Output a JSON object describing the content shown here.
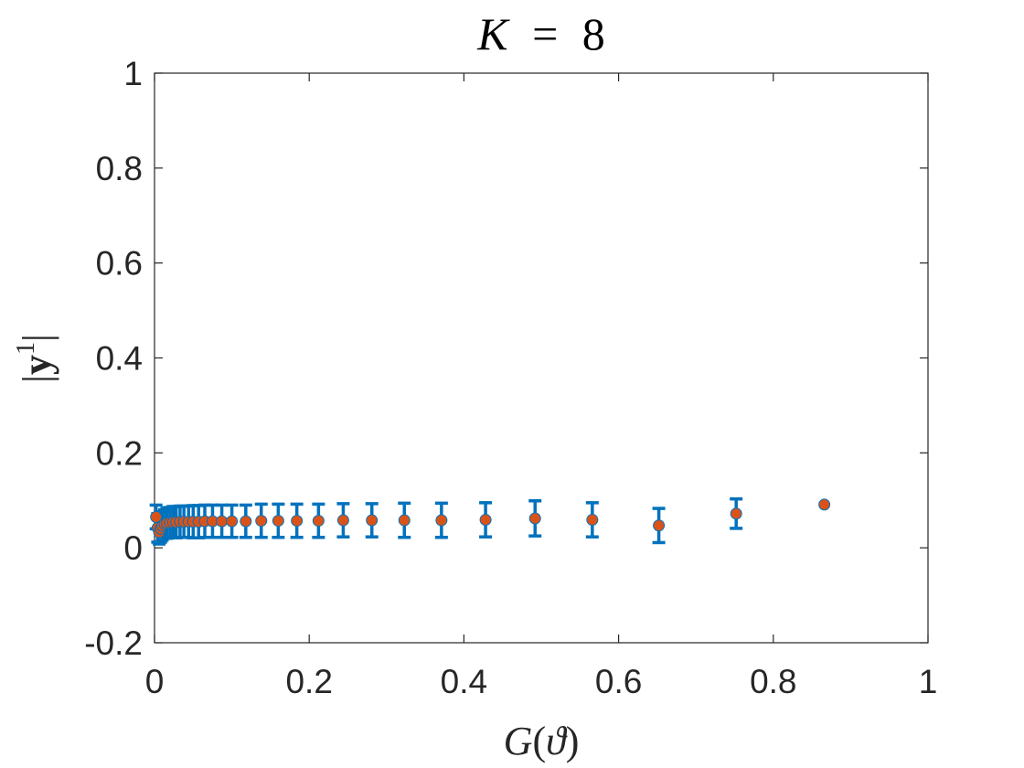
{
  "chart_data": {
    "type": "scatter",
    "title": "K = 8",
    "title_parts": {
      "var": "K",
      "op": "=",
      "num": "8"
    },
    "xlabel": "G(ϑ)",
    "xlabel_parts": {
      "fn": "G",
      "open": "(",
      "var": "ϑ",
      "close": ")"
    },
    "ylabel": "|y¹|",
    "ylabel_parts": {
      "bar_left": "|",
      "var": "y",
      "sup": "1",
      "bar_right": "|"
    },
    "xlim": [
      0,
      1
    ],
    "ylim": [
      -0.2,
      1
    ],
    "xticks": [
      0,
      0.2,
      0.4,
      0.6,
      0.8,
      1
    ],
    "xtick_labels": [
      "0",
      "0.2",
      "0.4",
      "0.6",
      "0.8",
      "1"
    ],
    "yticks": [
      -0.2,
      0,
      0.2,
      0.4,
      0.6,
      0.8,
      1
    ],
    "ytick_labels": [
      "-0.2",
      "0",
      "0.2",
      "0.4",
      "0.6",
      "0.8",
      "1"
    ],
    "grid": false,
    "colors": {
      "errorbar": "#0072BD",
      "marker": "#D95319",
      "axis": "#262626"
    },
    "series": [
      {
        "x": [
          0.002,
          0.004,
          0.006,
          0.008,
          0.01,
          0.013,
          0.016,
          0.02,
          0.024,
          0.028,
          0.033,
          0.038,
          0.044,
          0.05,
          0.057,
          0.065,
          0.075,
          0.087,
          0.1,
          0.118,
          0.138,
          0.16,
          0.184,
          0.212,
          0.244,
          0.281,
          0.323,
          0.371,
          0.428,
          0.492,
          0.566,
          0.652,
          0.752,
          0.866
        ],
        "y": [
          0.065,
          0.042,
          0.033,
          0.04,
          0.046,
          0.05,
          0.052,
          0.053,
          0.054,
          0.054,
          0.055,
          0.055,
          0.055,
          0.055,
          0.055,
          0.056,
          0.056,
          0.056,
          0.056,
          0.056,
          0.057,
          0.057,
          0.057,
          0.057,
          0.058,
          0.058,
          0.058,
          0.058,
          0.059,
          0.062,
          0.059,
          0.047,
          0.072,
          0.091
        ],
        "yerr": [
          0.025,
          0.03,
          0.025,
          0.028,
          0.03,
          0.03,
          0.032,
          0.032,
          0.033,
          0.033,
          0.033,
          0.033,
          0.033,
          0.034,
          0.034,
          0.034,
          0.034,
          0.034,
          0.034,
          0.034,
          0.035,
          0.035,
          0.035,
          0.035,
          0.035,
          0.035,
          0.036,
          0.036,
          0.036,
          0.037,
          0.036,
          0.036,
          0.031,
          0.0
        ]
      }
    ]
  }
}
